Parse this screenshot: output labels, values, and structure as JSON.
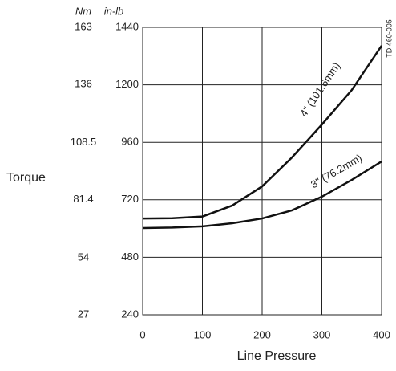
{
  "chart_data": {
    "type": "line",
    "axis_headers": [
      "Nm",
      "in-lb"
    ],
    "ylabel": "Torque",
    "xlabel": "Line Pressure",
    "annotation": "TD 460-005",
    "x": [
      0,
      50,
      100,
      150,
      200,
      250,
      300,
      350,
      400
    ],
    "series": [
      {
        "name": "4\" (101.6mm)",
        "color": "#111111",
        "values": [
          642,
          643,
          650,
          696,
          776,
          897,
          1034,
          1178,
          1363
        ]
      },
      {
        "name": "3\" (76.2mm)",
        "color": "#111111",
        "values": [
          602,
          604,
          609,
          622,
          642,
          676,
          733,
          803,
          880
        ]
      }
    ],
    "xlim": [
      0,
      400
    ],
    "xticks": [
      0,
      100,
      200,
      300,
      400
    ],
    "ylim": [
      240,
      1440
    ],
    "yticks": [
      240,
      480,
      720,
      960,
      1200,
      1440
    ],
    "y2lim": [
      27,
      163
    ],
    "y2ticks": [
      27,
      54,
      81.4,
      108.5,
      136,
      163
    ],
    "grid": true
  }
}
